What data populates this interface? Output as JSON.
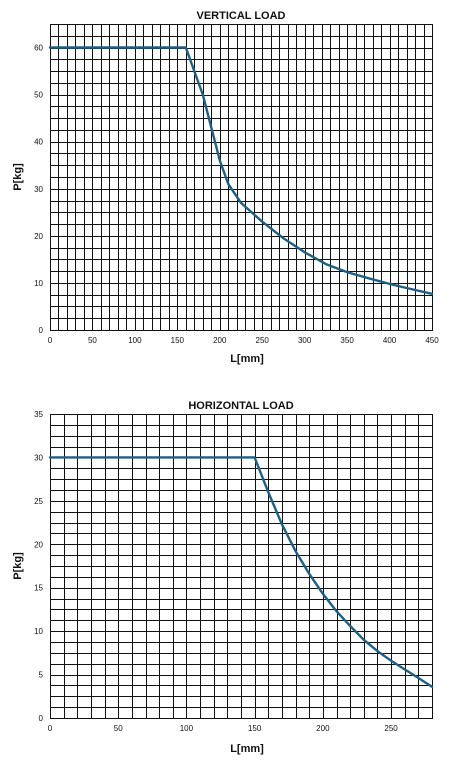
{
  "chart_data": [
    {
      "type": "line",
      "title": "VERTICAL LOAD",
      "xlabel": "L[mm]",
      "ylabel": "P[kg]",
      "xlim": [
        0,
        450
      ],
      "ylim": [
        0,
        65
      ],
      "x_ticks": [
        0,
        50,
        100,
        150,
        200,
        250,
        300,
        350,
        400,
        450
      ],
      "y_ticks": [
        0,
        10,
        20,
        30,
        40,
        50,
        60
      ],
      "grid": true,
      "grid_step_x": 10,
      "grid_step_y": 2.5,
      "series": [
        {
          "color": "#1e5f86",
          "x": [
            0,
            160,
            170,
            180,
            190,
            200,
            210,
            225,
            250,
            275,
            300,
            325,
            350,
            375,
            400,
            425,
            450
          ],
          "y": [
            60,
            60,
            55,
            50,
            43,
            36,
            31,
            27,
            23,
            19.5,
            16.5,
            14,
            12.3,
            11,
            9.8,
            8.7,
            7.7
          ]
        }
      ]
    },
    {
      "type": "line",
      "title": "HORIZONTAL LOAD",
      "xlabel": "L[mm]",
      "ylabel": "P[kg]",
      "xlim": [
        0,
        280
      ],
      "ylim": [
        0,
        35
      ],
      "x_ticks": [
        0,
        50,
        100,
        150,
        200,
        250
      ],
      "y_ticks": [
        0,
        5,
        10,
        15,
        20,
        25,
        30,
        35
      ],
      "grid": true,
      "grid_step_x": 10,
      "grid_step_y": 1.25,
      "series": [
        {
          "color": "#1e5f86",
          "x": [
            0,
            150,
            160,
            170,
            180,
            190,
            200,
            210,
            220,
            230,
            240,
            250,
            260,
            270,
            280
          ],
          "y": [
            30,
            30,
            26,
            22.3,
            19.2,
            16.6,
            14.3,
            12.3,
            10.6,
            9.0,
            7.7,
            6.6,
            5.6,
            4.6,
            3.6
          ]
        }
      ]
    }
  ]
}
